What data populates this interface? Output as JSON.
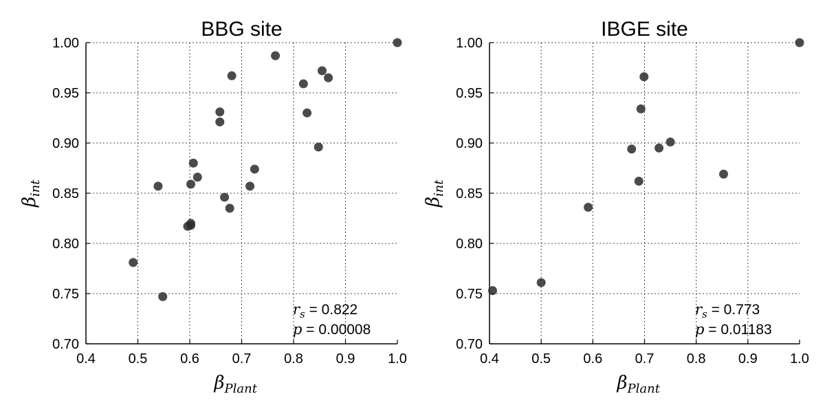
{
  "chart_data": [
    {
      "type": "scatter",
      "title": "BBG site",
      "xlabel": {
        "base": "β",
        "sub": "Plant"
      },
      "ylabel": {
        "base": "β",
        "sub": "int"
      },
      "xlim": [
        0.4,
        1.0
      ],
      "ylim": [
        0.7,
        1.0
      ],
      "xticks": [
        "0.4",
        "0.5",
        "0.6",
        "0.7",
        "0.8",
        "0.9",
        "1.0"
      ],
      "yticks": [
        "0.70",
        "0.75",
        "0.80",
        "0.85",
        "0.90",
        "0.95",
        "1.00"
      ],
      "grid": true,
      "points": [
        {
          "x": 1.0,
          "y": 1.0
        },
        {
          "x": 0.765,
          "y": 0.987
        },
        {
          "x": 0.855,
          "y": 0.972
        },
        {
          "x": 0.681,
          "y": 0.967
        },
        {
          "x": 0.867,
          "y": 0.965
        },
        {
          "x": 0.819,
          "y": 0.959
        },
        {
          "x": 0.658,
          "y": 0.931
        },
        {
          "x": 0.826,
          "y": 0.93
        },
        {
          "x": 0.658,
          "y": 0.921
        },
        {
          "x": 0.848,
          "y": 0.896
        },
        {
          "x": 0.607,
          "y": 0.88
        },
        {
          "x": 0.725,
          "y": 0.874
        },
        {
          "x": 0.615,
          "y": 0.866
        },
        {
          "x": 0.602,
          "y": 0.859
        },
        {
          "x": 0.539,
          "y": 0.857
        },
        {
          "x": 0.716,
          "y": 0.857
        },
        {
          "x": 0.667,
          "y": 0.846
        },
        {
          "x": 0.677,
          "y": 0.835
        },
        {
          "x": 0.602,
          "y": 0.82
        },
        {
          "x": 0.596,
          "y": 0.817
        },
        {
          "x": 0.602,
          "y": 0.818
        },
        {
          "x": 0.491,
          "y": 0.781
        },
        {
          "x": 0.548,
          "y": 0.747
        }
      ],
      "annotation": {
        "rs_label": "r",
        "rs_sub": "s",
        "rs_value": " = 0.822",
        "p_label": "p",
        "p_value": " = 0.00008"
      }
    },
    {
      "type": "scatter",
      "title": "IBGE site",
      "xlabel": {
        "base": "β",
        "sub": "Plant"
      },
      "ylabel": {
        "base": "β",
        "sub": "int"
      },
      "xlim": [
        0.4,
        1.0
      ],
      "ylim": [
        0.7,
        1.0
      ],
      "xticks": [
        "0.4",
        "0.5",
        "0.6",
        "0.7",
        "0.8",
        "0.9",
        "1.0"
      ],
      "yticks": [
        "0.70",
        "0.75",
        "0.80",
        "0.85",
        "0.90",
        "0.95",
        "1.00"
      ],
      "grid": true,
      "points": [
        {
          "x": 1.0,
          "y": 1.0
        },
        {
          "x": 0.699,
          "y": 0.966
        },
        {
          "x": 0.693,
          "y": 0.934
        },
        {
          "x": 0.75,
          "y": 0.901
        },
        {
          "x": 0.728,
          "y": 0.895
        },
        {
          "x": 0.675,
          "y": 0.894
        },
        {
          "x": 0.853,
          "y": 0.869
        },
        {
          "x": 0.689,
          "y": 0.862
        },
        {
          "x": 0.591,
          "y": 0.836
        },
        {
          "x": 0.5,
          "y": 0.761
        },
        {
          "x": 0.406,
          "y": 0.753
        }
      ],
      "annotation": {
        "rs_label": "r",
        "rs_sub": "s",
        "rs_value": " = 0.773",
        "p_label": "p",
        "p_value": " = 0.01183"
      }
    }
  ]
}
